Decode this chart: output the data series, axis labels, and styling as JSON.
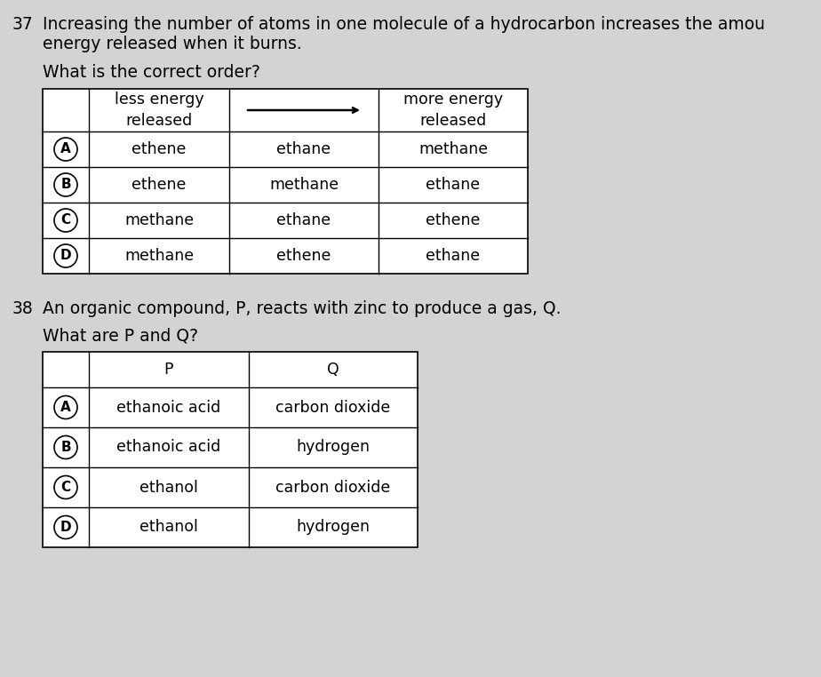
{
  "background_color": "#d3d3d3",
  "q37_number": "37",
  "q37_text_line1": "Increasing the number of atoms in one molecule of a hydrocarbon increases the amou",
  "q37_text_line2": "energy released when it burns.",
  "q37_subtext": "What is the correct order?",
  "q38_number": "38",
  "q38_text": "An organic compound, P, reacts with zinc to produce a gas, Q.",
  "q38_subtext": "What are P and Q?",
  "table1": {
    "rows": [
      {
        "label": "A",
        "col1": "ethene",
        "col2": "ethane",
        "col3": "methane"
      },
      {
        "label": "B",
        "col1": "ethene",
        "col2": "methane",
        "col3": "ethane"
      },
      {
        "label": "C",
        "col1": "methane",
        "col2": "ethane",
        "col3": "ethene"
      },
      {
        "label": "D",
        "col1": "methane",
        "col2": "ethene",
        "col3": "ethane"
      }
    ]
  },
  "table2": {
    "rows": [
      {
        "label": "A",
        "col1": "ethanoic acid",
        "col2": "carbon dioxide"
      },
      {
        "label": "B",
        "col1": "ethanoic acid",
        "col2": "hydrogen"
      },
      {
        "label": "C",
        "col1": "ethanol",
        "col2": "carbon dioxide"
      },
      {
        "label": "D",
        "col1": "ethanol",
        "col2": "hydrogen"
      }
    ]
  },
  "fs_q": 13.5,
  "fs_t": 12.5,
  "fs_num": 13.5,
  "text_color": "#000000",
  "border_color": "#000000",
  "white": "#ffffff"
}
